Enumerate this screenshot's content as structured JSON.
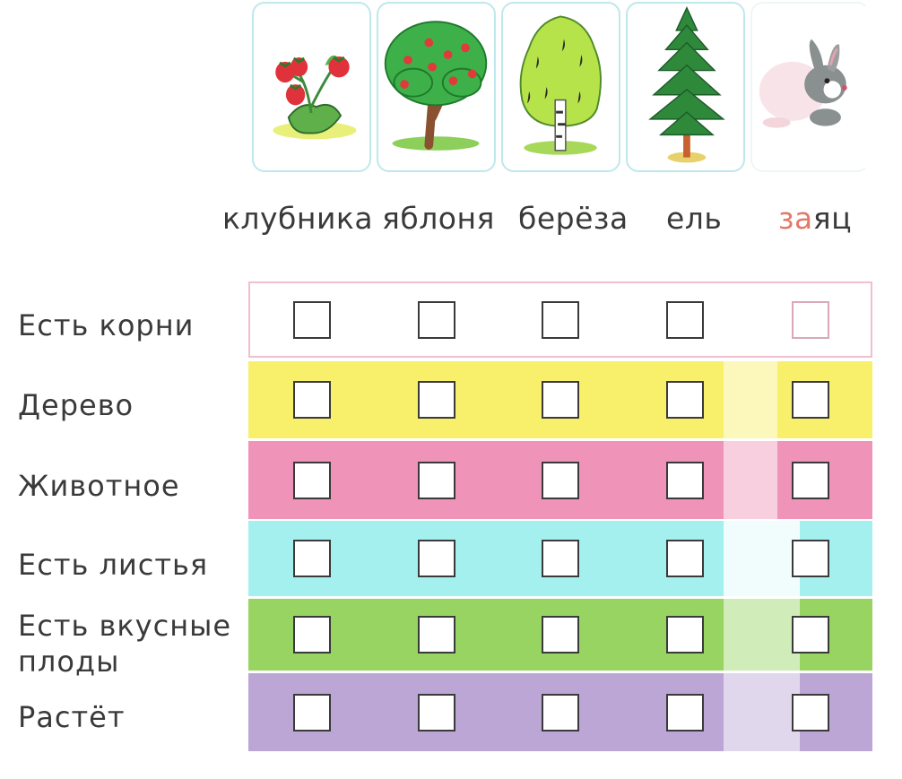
{
  "columns": [
    {
      "label": "клубника",
      "icon": "strawberry-icon"
    },
    {
      "label": "яблоня",
      "icon": "apple-tree-icon"
    },
    {
      "label": "берёза",
      "icon": "birch-tree-icon"
    },
    {
      "label": "ель",
      "icon": "spruce-tree-icon"
    },
    {
      "label_accent": "за",
      "label_rest": "яц",
      "icon": "hare-icon"
    }
  ],
  "rows": [
    {
      "label": "Есть корни",
      "color": "#ffffff"
    },
    {
      "label": "Дерево",
      "color": "#f8f06a"
    },
    {
      "label": "Животное",
      "color": "#ef94b8"
    },
    {
      "label": "Есть листья",
      "color": "#a4f0ee"
    },
    {
      "label_line1": "Есть вкусные",
      "label_line2": "плоды",
      "color": "#98d462"
    },
    {
      "label": "Растёт",
      "color": "#bca6d6"
    }
  ],
  "colors": {
    "table_border": "#f0bfd0",
    "text": "#3a3a3a",
    "accent_letters": "#e27a6a"
  }
}
